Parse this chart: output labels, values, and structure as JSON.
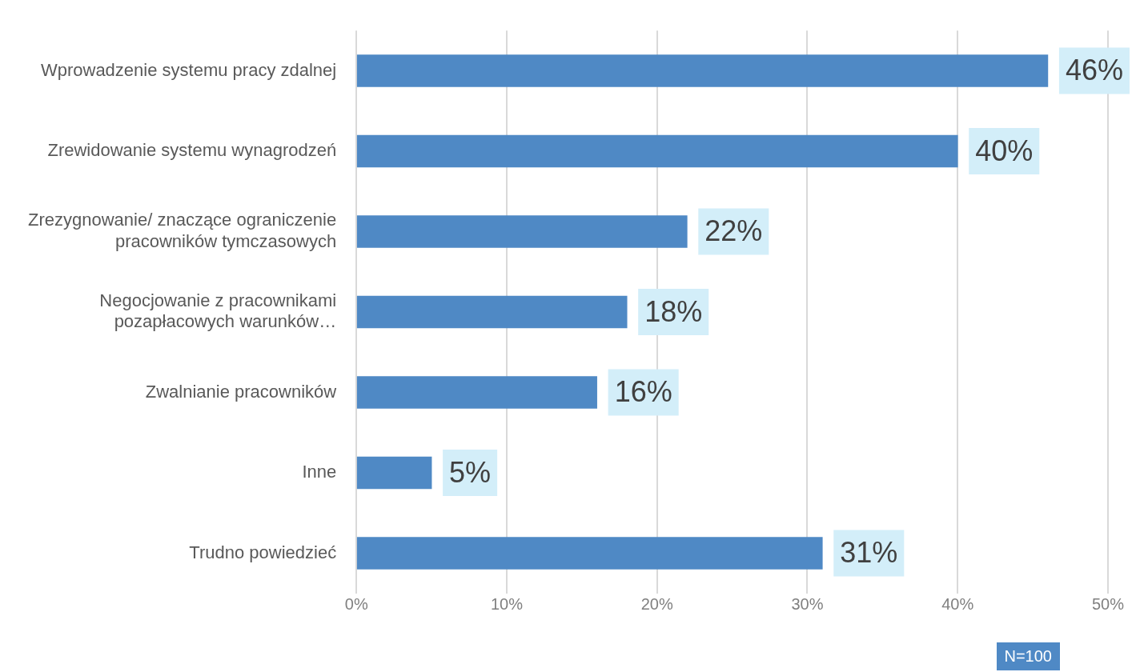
{
  "chart_data": {
    "type": "bar",
    "orientation": "horizontal",
    "categories": [
      "Wprowadzenie systemu pracy zdalnej",
      "Zrewidowanie systemu wynagrodzeń",
      "Zrezygnowanie/ znaczące ograniczenie pracowników tymczasowych",
      "Negocjowanie z pracownikami pozapłacowych warunków…",
      "Zwalnianie pracowników",
      "Inne",
      "Trudno powiedzieć"
    ],
    "values": [
      46,
      40,
      22,
      18,
      16,
      5,
      31
    ],
    "value_labels": [
      "46%",
      "40%",
      "22%",
      "18%",
      "16%",
      "5%",
      "31%"
    ],
    "color": "#4f89c5",
    "xlim": [
      0,
      50
    ],
    "xticks": [
      {
        "value": 0,
        "label": "0%"
      },
      {
        "value": 10,
        "label": "10%"
      },
      {
        "value": 20,
        "label": "20%"
      },
      {
        "value": 30,
        "label": "30%"
      },
      {
        "value": 40,
        "label": "40%"
      },
      {
        "value": 50,
        "label": "50%"
      }
    ],
    "grid": "x",
    "annotations": [
      "N=100"
    ]
  }
}
